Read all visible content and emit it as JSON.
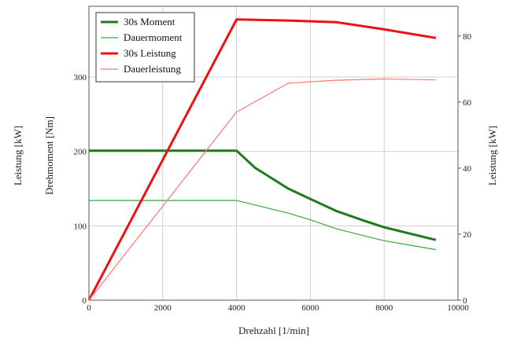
{
  "chart_data": {
    "type": "line",
    "xlabel": "Drehzahl [1/min]",
    "ylabel_left_outer": "Leistung [kW]",
    "ylabel_left": "Drehmoment [Nm]",
    "ylabel_right": "Leistung [kW]",
    "xlim": [
      0,
      10000
    ],
    "ylim_left": [
      0,
      395
    ],
    "ylim_right": [
      0,
      89
    ],
    "x_ticks": [
      "0",
      "2000",
      "4000",
      "6000",
      "8000",
      "10000"
    ],
    "y_left_ticks": [
      "0",
      "100",
      "200",
      "300"
    ],
    "y_right_ticks": [
      "0",
      "20",
      "40",
      "60",
      "80"
    ],
    "grid": true,
    "legend_position": "top-left",
    "series": [
      {
        "name": "30s Moment",
        "axis": "left",
        "color": "#1f7a1f",
        "width": "thick",
        "x": [
          0,
          4000,
          4500,
          5400,
          6000,
          6700,
          7500,
          8000,
          9400
        ],
        "y": [
          201,
          201,
          178,
          150,
          136,
          120,
          106,
          98,
          81
        ]
      },
      {
        "name": "Dauermoment",
        "axis": "left",
        "color": "#33aa33",
        "width": "thin",
        "x": [
          0,
          4000,
          5400,
          6000,
          6700,
          7500,
          8000,
          9400
        ],
        "y": [
          134,
          134,
          117,
          108,
          96,
          86,
          80,
          68
        ]
      },
      {
        "name": "30s Leistung",
        "axis": "right",
        "color": "#ee1111",
        "width": "thick",
        "x": [
          0,
          4000,
          5400,
          6700,
          8000,
          9400
        ],
        "y": [
          0,
          85,
          84.7,
          84.2,
          82,
          79.4
        ]
      },
      {
        "name": "Dauerleistung",
        "axis": "right",
        "color": "#ff7777",
        "width": "thin",
        "x": [
          0,
          4000,
          5400,
          6700,
          8000,
          9400
        ],
        "y": [
          0,
          57,
          65.7,
          66.6,
          67,
          66.7
        ]
      }
    ]
  }
}
